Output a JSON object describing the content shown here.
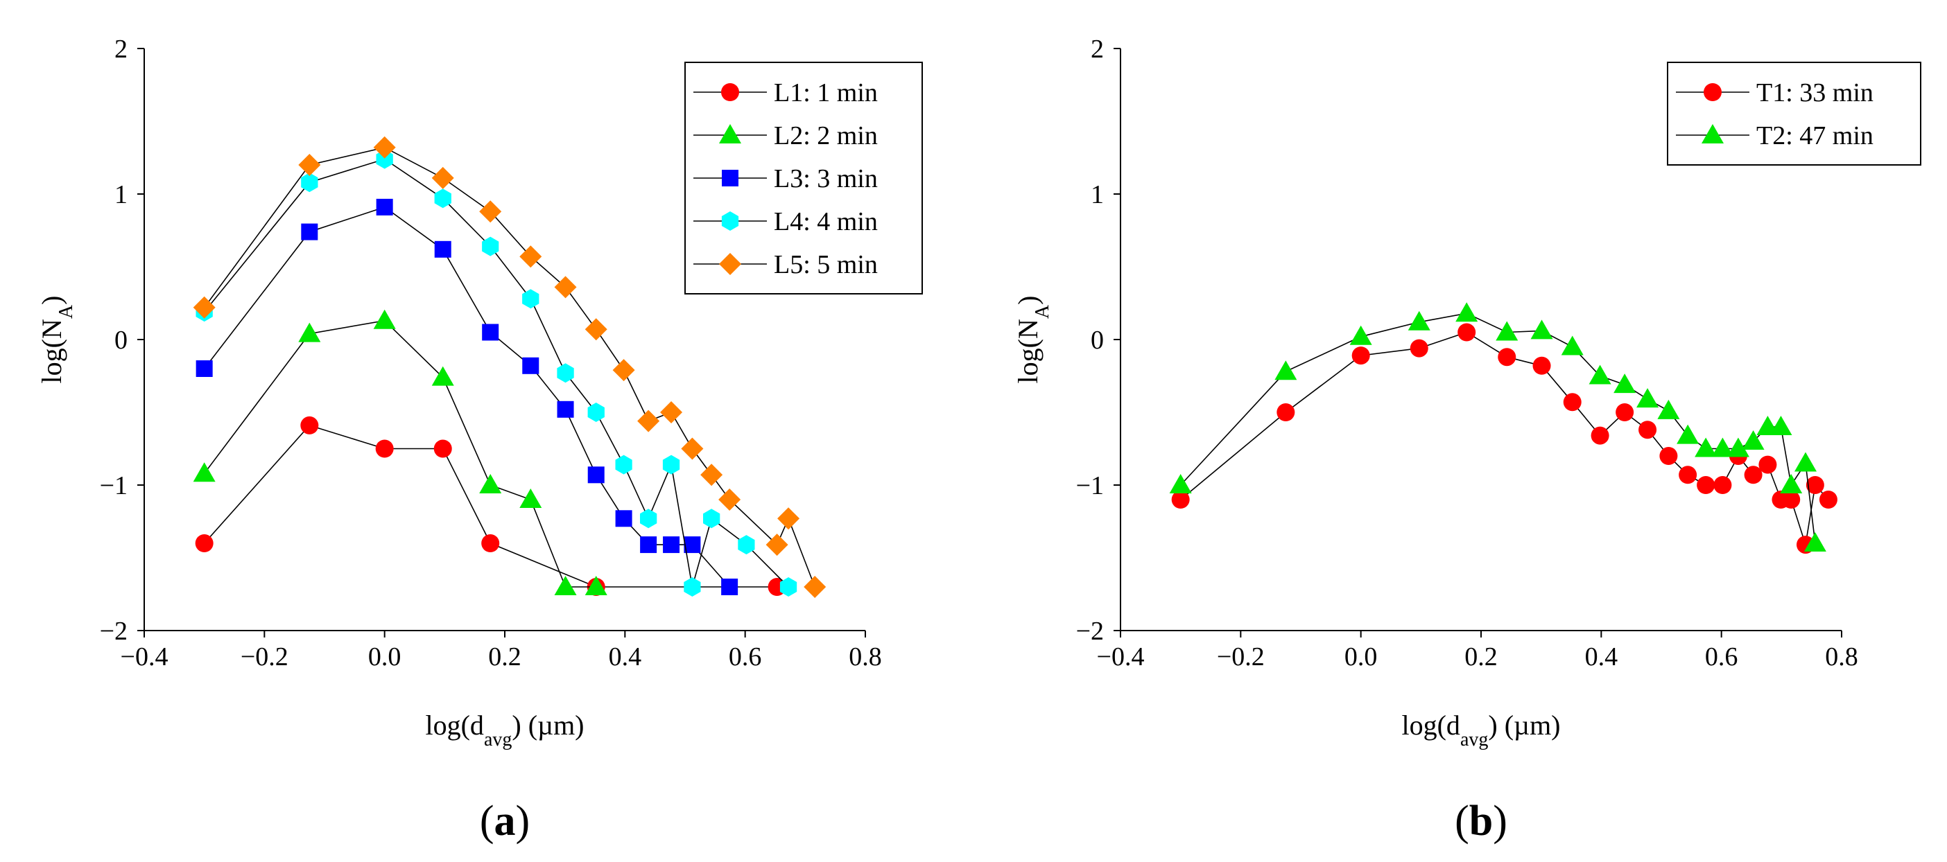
{
  "colors": {
    "L1": "#ff0000",
    "L2": "#00e600",
    "L3": "#0000ff",
    "L4": "#00ffff",
    "L5": "#ff8000",
    "T1": "#ff0000",
    "T2": "#00e600",
    "line": "#000000"
  },
  "chart_data": [
    {
      "type": "line",
      "panel_label": "a",
      "xlabel": "log(d_avg) (µm)",
      "ylabel": "log(N_A)",
      "xlim": [
        -0.4,
        0.8
      ],
      "ylim": [
        -2,
        2
      ],
      "x_ticks": [
        "−0.4",
        "−0.2",
        "0.0",
        "0.2",
        "0.4",
        "0.6",
        "0.8"
      ],
      "y_ticks": [
        "−2",
        "−1",
        "0",
        "1",
        "2"
      ],
      "legend_position": "top-right",
      "series": [
        {
          "name": "L1: 1 min",
          "marker": "circle",
          "color_key": "L1",
          "x": [
            -0.3,
            -0.125,
            0.0,
            0.097,
            0.176,
            0.352,
            0.653
          ],
          "y": [
            -1.4,
            -0.59,
            -0.75,
            -0.75,
            -1.4,
            -1.7,
            -1.7
          ]
        },
        {
          "name": "L2: 2 min",
          "marker": "triangle",
          "color_key": "L2",
          "x": [
            -0.3,
            -0.125,
            0.0,
            0.097,
            0.176,
            0.243,
            0.301,
            0.352
          ],
          "y": [
            -0.92,
            0.04,
            0.13,
            -0.26,
            -1.0,
            -1.1,
            -1.7,
            -1.7
          ]
        },
        {
          "name": "L3: 3 min",
          "marker": "square",
          "color_key": "L3",
          "x": [
            -0.3,
            -0.125,
            0.0,
            0.097,
            0.176,
            0.243,
            0.301,
            0.352,
            0.398,
            0.439,
            0.477,
            0.512,
            0.574
          ],
          "y": [
            -0.2,
            0.74,
            0.91,
            0.62,
            0.05,
            -0.18,
            -0.48,
            -0.93,
            -1.23,
            -1.41,
            -1.41,
            -1.41,
            -1.7
          ]
        },
        {
          "name": "L4: 4 min",
          "marker": "hexagon",
          "color_key": "L4",
          "x": [
            -0.3,
            -0.125,
            0.0,
            0.097,
            0.176,
            0.243,
            0.301,
            0.352,
            0.398,
            0.439,
            0.477,
            0.512,
            0.544,
            0.602,
            0.672
          ],
          "y": [
            0.19,
            1.08,
            1.24,
            0.97,
            0.64,
            0.28,
            -0.23,
            -0.5,
            -0.86,
            -1.23,
            -0.86,
            -1.7,
            -1.23,
            -1.41,
            -1.7
          ]
        },
        {
          "name": "L5: 5 min",
          "marker": "diamond",
          "color_key": "L5",
          "x": [
            -0.3,
            -0.125,
            0.0,
            0.097,
            0.176,
            0.243,
            0.301,
            0.352,
            0.398,
            0.439,
            0.477,
            0.512,
            0.544,
            0.574,
            0.653,
            0.672,
            0.716
          ],
          "y": [
            0.22,
            1.2,
            1.32,
            1.11,
            0.88,
            0.57,
            0.36,
            0.07,
            -0.21,
            -0.56,
            -0.5,
            -0.75,
            -0.93,
            -1.1,
            -1.41,
            -1.23,
            -1.7
          ]
        }
      ]
    },
    {
      "type": "line",
      "panel_label": "b",
      "xlabel": "log(d_avg) (µm)",
      "ylabel": "log(N_A)",
      "xlim": [
        -0.4,
        0.8
      ],
      "ylim": [
        -2,
        2
      ],
      "x_ticks": [
        "−0.4",
        "−0.2",
        "0.0",
        "0.2",
        "0.4",
        "0.6",
        "0.8"
      ],
      "y_ticks": [
        "−2",
        "−1",
        "0",
        "1",
        "2"
      ],
      "legend_position": "top-right",
      "series": [
        {
          "name": "T1: 33 min",
          "marker": "circle",
          "color_key": "T1",
          "x": [
            -0.3,
            -0.125,
            0.0,
            0.097,
            0.176,
            0.243,
            0.301,
            0.352,
            0.398,
            0.439,
            0.477,
            0.512,
            0.544,
            0.574,
            0.602,
            0.628,
            0.653,
            0.677,
            0.699,
            0.716,
            0.74,
            0.756,
            0.778
          ],
          "y": [
            -1.1,
            -0.5,
            -0.11,
            -0.06,
            0.05,
            -0.12,
            -0.18,
            -0.43,
            -0.66,
            -0.5,
            -0.62,
            -0.8,
            -0.93,
            -1.0,
            -1.0,
            -0.8,
            -0.93,
            -0.86,
            -1.1,
            -1.1,
            -1.41,
            -1.0,
            -1.1
          ]
        },
        {
          "name": "T2: 47 min",
          "marker": "triangle",
          "color_key": "T2",
          "x": [
            -0.3,
            -0.125,
            0.0,
            0.097,
            0.176,
            0.243,
            0.301,
            0.352,
            0.398,
            0.439,
            0.477,
            0.512,
            0.544,
            0.574,
            0.602,
            0.628,
            0.653,
            0.677,
            0.699,
            0.716,
            0.74,
            0.756
          ],
          "y": [
            -1.0,
            -0.22,
            0.02,
            0.12,
            0.18,
            0.05,
            0.06,
            -0.05,
            -0.25,
            -0.31,
            -0.41,
            -0.49,
            -0.66,
            -0.75,
            -0.75,
            -0.75,
            -0.7,
            -0.6,
            -0.6,
            -1.0,
            -0.85,
            -1.4
          ]
        }
      ]
    }
  ]
}
